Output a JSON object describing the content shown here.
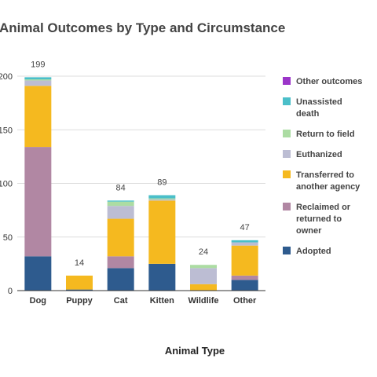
{
  "chart_data": {
    "type": "bar",
    "stacked": true,
    "title": "Animal Outcomes by Type and Circumstance",
    "xlabel": "Animal Type",
    "ylabel": "",
    "ylim": [
      0,
      200
    ],
    "yticks": [
      "0",
      "50",
      "100",
      "150",
      "200"
    ],
    "grid": true,
    "legend_position": "right",
    "categories": [
      "Dog",
      "Puppy",
      "Cat",
      "Kitten",
      "Wildlife",
      "Other"
    ],
    "totals": [
      "199",
      "14",
      "84",
      "89",
      "24",
      "47"
    ],
    "series": [
      {
        "name": "Adopted",
        "color": "#2e5b8e",
        "values": [
          32,
          1,
          21,
          25,
          0,
          10
        ]
      },
      {
        "name": "Reclaimed or returned to owner",
        "color": "#b187a3",
        "values": [
          102,
          0,
          11,
          0,
          0,
          4
        ]
      },
      {
        "name": "Transferred to another agency",
        "color": "#f5b91f",
        "values": [
          57,
          13,
          35,
          59,
          6,
          28
        ]
      },
      {
        "name": "Euthanized",
        "color": "#bcbdd3",
        "values": [
          5,
          0,
          12,
          1,
          15,
          3
        ]
      },
      {
        "name": "Return to field",
        "color": "#acdca3",
        "values": [
          1,
          0,
          4,
          1,
          3,
          0
        ]
      },
      {
        "name": "Unassisted death",
        "color": "#4bbfc9",
        "values": [
          2,
          0,
          1,
          3,
          0,
          2
        ]
      },
      {
        "name": "Other outcomes",
        "color": "#9b35c9",
        "values": [
          0,
          0,
          0,
          0,
          0,
          0
        ]
      }
    ],
    "legend": [
      {
        "lines": [
          "Other outcomes"
        ],
        "color": "#9b35c9"
      },
      {
        "lines": [
          "Unassisted",
          "death"
        ],
        "color": "#4bbfc9"
      },
      {
        "lines": [
          "Return to field"
        ],
        "color": "#acdca3"
      },
      {
        "lines": [
          "Euthanized"
        ],
        "color": "#bcbdd3"
      },
      {
        "lines": [
          "Transferred to",
          "another agency"
        ],
        "color": "#f5b91f"
      },
      {
        "lines": [
          "Reclaimed or",
          "returned to",
          "owner"
        ],
        "color": "#b187a3"
      },
      {
        "lines": [
          "Adopted"
        ],
        "color": "#2e5b8e"
      }
    ]
  }
}
